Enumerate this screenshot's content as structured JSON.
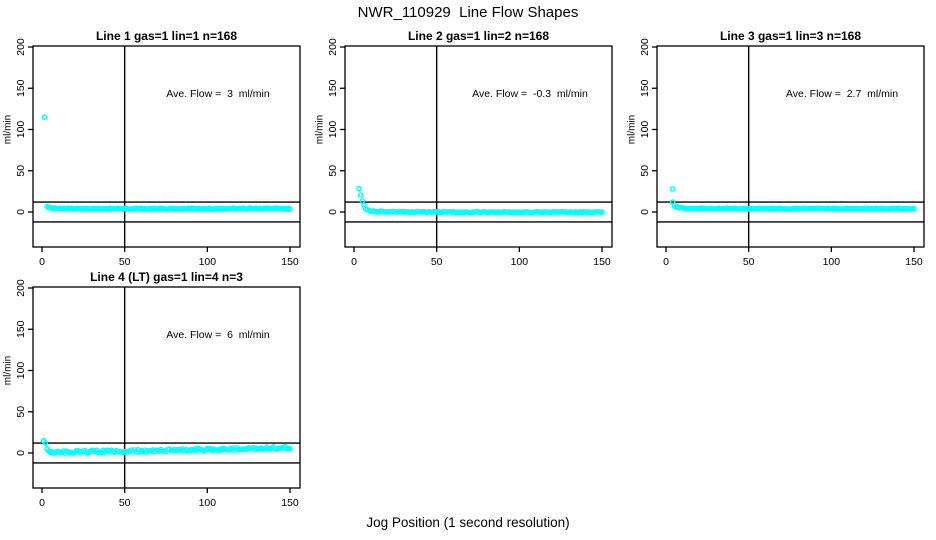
{
  "main_title": "NWR_110929  Line Flow Shapes",
  "xlabel": "Jog Position (1 second resolution)",
  "chart_data": {
    "type": "scatter",
    "point_color": "#00FFFF",
    "axis_color": "#000000",
    "x_ticks": [
      0,
      50,
      100,
      150
    ],
    "y_ticks": [
      0,
      50,
      100,
      150,
      200
    ],
    "xlim": [
      0,
      155
    ],
    "ylim": [
      -45,
      205
    ],
    "ylabel": "ml/min",
    "vline_x": 50,
    "hlines_y": [
      12,
      -12
    ],
    "grid": false,
    "legend": "none",
    "plots": [
      {
        "title": "Line 1 gas=1 lin=1 n=168",
        "line": 1,
        "gas": 1,
        "lin": 1,
        "n": 168,
        "ave_flow": 3,
        "ave_flow_label": "Ave. Flow =  3  ml/min",
        "outliers": [
          [
            1.5,
            115
          ]
        ],
        "profile": [
          [
            3,
            7
          ],
          [
            4,
            6
          ],
          [
            5,
            5
          ],
          [
            8,
            4.2
          ],
          [
            20,
            4
          ],
          [
            150,
            4
          ]
        ],
        "noise": 0.7
      },
      {
        "title": "Line 2 gas=1 lin=2 n=168",
        "line": 2,
        "gas": 1,
        "lin": 2,
        "n": 168,
        "ave_flow": -0.3,
        "ave_flow_label": "Ave. Flow =  -0.3  ml/min",
        "outliers": [],
        "profile": [
          [
            3,
            28
          ],
          [
            4,
            21
          ],
          [
            5,
            13
          ],
          [
            6,
            7.5
          ],
          [
            7,
            4.5
          ],
          [
            9,
            2
          ],
          [
            12,
            0.8
          ],
          [
            20,
            0.2
          ],
          [
            150,
            -0.2
          ]
        ],
        "noise": 0.6
      },
      {
        "title": "Line 3 gas=1 lin=3 n=168",
        "line": 3,
        "gas": 1,
        "lin": 3,
        "n": 168,
        "ave_flow": 2.7,
        "ave_flow_label": "Ave. Flow =  2.7  ml/min",
        "outliers": [
          [
            4,
            28
          ]
        ],
        "profile": [
          [
            4,
            12
          ],
          [
            5,
            8.5
          ],
          [
            6,
            6.5
          ],
          [
            9,
            5
          ],
          [
            15,
            4.2
          ],
          [
            150,
            4
          ]
        ],
        "noise": 0.6
      },
      {
        "title": "Line 4 (LT) gas=1 lin=4 n=3",
        "line": 4,
        "gas": 1,
        "lin": 4,
        "n": 3,
        "ave_flow": 6,
        "ave_flow_label": "Ave. Flow =  6  ml/min",
        "outliers": [],
        "profile": [
          [
            1,
            16
          ],
          [
            2,
            12
          ],
          [
            3,
            5
          ],
          [
            4,
            1.5
          ],
          [
            6,
            0.5
          ],
          [
            10,
            1
          ],
          [
            20,
            1.5
          ],
          [
            40,
            2
          ],
          [
            60,
            2.5
          ],
          [
            80,
            3.5
          ],
          [
            100,
            4
          ],
          [
            120,
            5
          ],
          [
            140,
            6
          ],
          [
            150,
            6.5
          ]
        ],
        "noise": 1.6
      }
    ]
  }
}
